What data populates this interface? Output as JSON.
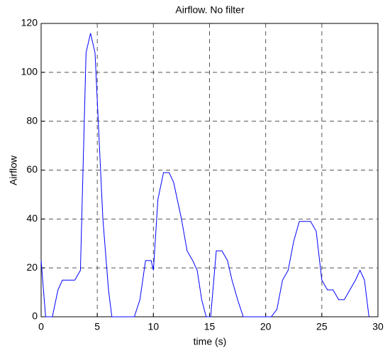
{
  "chart_data": {
    "type": "line",
    "title": "Airflow. No filter",
    "x_label": "time (s)",
    "y_label": "Airflow",
    "x": [
      0,
      0.4,
      1.0,
      1.5,
      1.9,
      2.5,
      3.0,
      3.5,
      4.0,
      4.4,
      4.8,
      5.5,
      6.0,
      6.3,
      8.3,
      8.8,
      9.3,
      9.8,
      10.0,
      10.4,
      10.9,
      11.4,
      11.8,
      12.5,
      13.0,
      13.5,
      13.9,
      14.3,
      14.7,
      15.1,
      15.6,
      16.1,
      16.6,
      17.0,
      17.5,
      18.0,
      20.5,
      21.0,
      21.5,
      22.0,
      22.5,
      23.0,
      23.5,
      24.0,
      24.5,
      25.0,
      25.5,
      26.0,
      26.5,
      27.0,
      27.5,
      28.0,
      28.4,
      28.8,
      29.2
    ],
    "series": [
      {
        "name": "Airflow",
        "color": "#0000ff",
        "values": [
          23,
          0,
          0,
          11,
          15,
          15,
          15,
          19,
          108,
          116,
          108,
          40,
          11,
          0,
          0,
          7,
          23,
          23,
          19,
          48,
          59,
          59,
          55,
          40,
          27,
          23,
          19,
          7,
          0,
          0,
          27,
          27,
          23,
          15,
          7,
          0,
          0,
          3,
          15,
          19,
          31,
          39,
          39,
          39,
          35,
          15,
          11,
          11,
          7,
          7,
          11,
          15,
          19,
          15,
          0
        ]
      }
    ],
    "xlim": [
      0,
      30
    ],
    "xticks": [
      0,
      5,
      10,
      15,
      20,
      25,
      30
    ],
    "ylim": [
      0,
      120
    ],
    "yticks": [
      0,
      20,
      40,
      60,
      80,
      100,
      120
    ],
    "grid": true
  }
}
